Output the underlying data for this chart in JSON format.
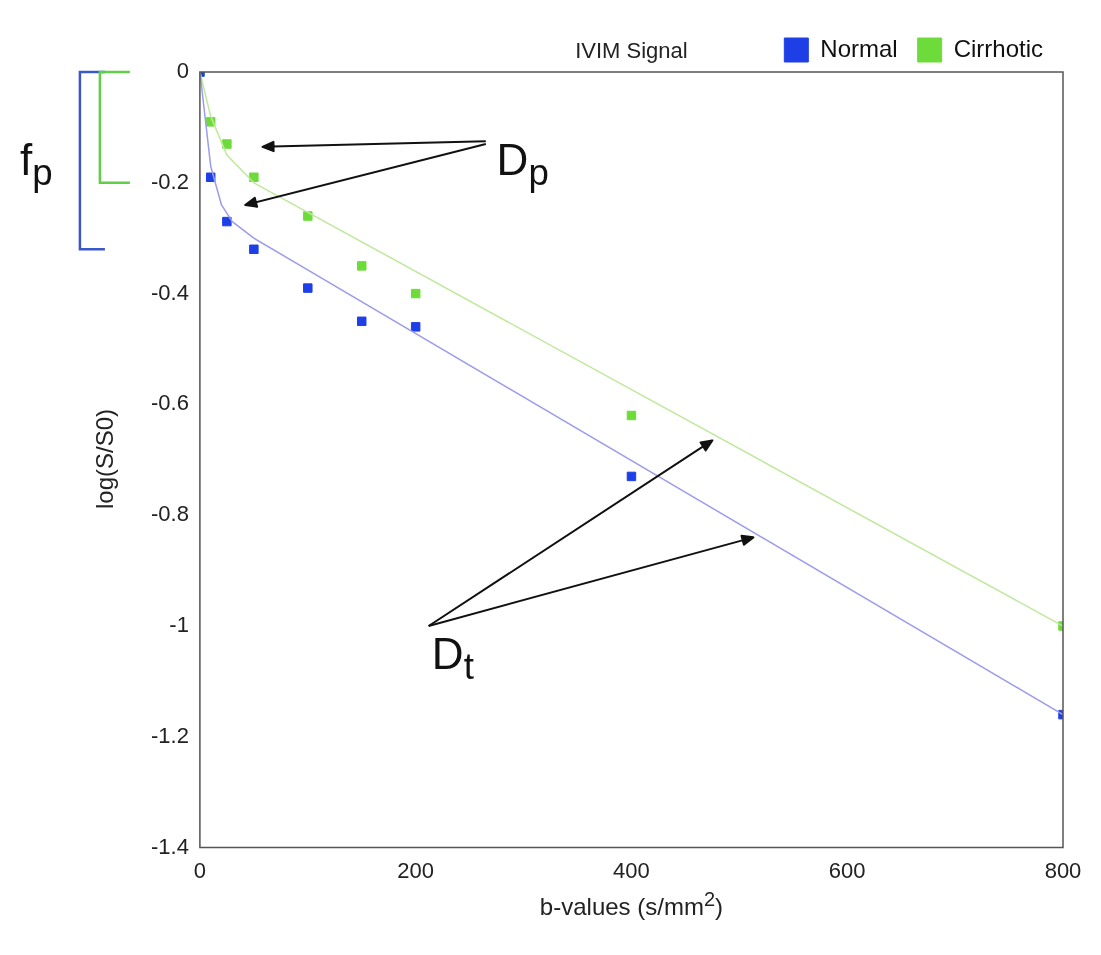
{
  "chart_data": {
    "type": "scatter",
    "title": "IVIM Signal",
    "xlabel": "b-values (s/mm$^{2}$)",
    "ylabel": "log(S/S0)",
    "xlim": [
      0,
      800
    ],
    "xticks": [
      0,
      200,
      400,
      600,
      800
    ],
    "ylim": [
      -1.4,
      0
    ],
    "yticks": [
      -1.4,
      -1.2,
      -1,
      -0.8,
      -0.6,
      -0.4,
      -0.2,
      0
    ],
    "grid": false,
    "legend": "top right",
    "marker": "square",
    "annotations": [
      "f$_{p}$",
      "D$_{p}$",
      "D$_{t}$"
    ],
    "series": [
      {
        "type": "line",
        "marker": "none",
        "color": "#9c9cec",
        "x": [
          0,
          10,
          20,
          30,
          50,
          800
        ],
        "values": [
          0,
          -0.17,
          -0.24,
          -0.27,
          -0.3,
          -1.16
        ]
      },
      {
        "type": "line",
        "marker": "none",
        "color": "#bfe89a",
        "x": [
          0,
          10,
          25,
          50,
          800
        ],
        "values": [
          0,
          -0.08,
          -0.15,
          -0.2,
          -1.0
        ]
      },
      {
        "name": "Normal",
        "color": "#1f3fe6",
        "x": [
          0,
          10,
          25,
          50,
          100,
          150,
          200,
          400,
          800
        ],
        "values": [
          0,
          -0.19,
          -0.27,
          -0.32,
          -0.39,
          -0.45,
          -0.46,
          -0.73,
          -1.16
        ]
      },
      {
        "name": "Cirrhotic",
        "color": "#6ddc3a",
        "x": [
          0,
          10,
          25,
          50,
          100,
          150,
          200,
          400,
          800
        ],
        "values": [
          0,
          -0.09,
          -0.13,
          -0.19,
          -0.26,
          -0.35,
          -0.4,
          -0.62,
          -1.0
        ]
      }
    ]
  }
}
